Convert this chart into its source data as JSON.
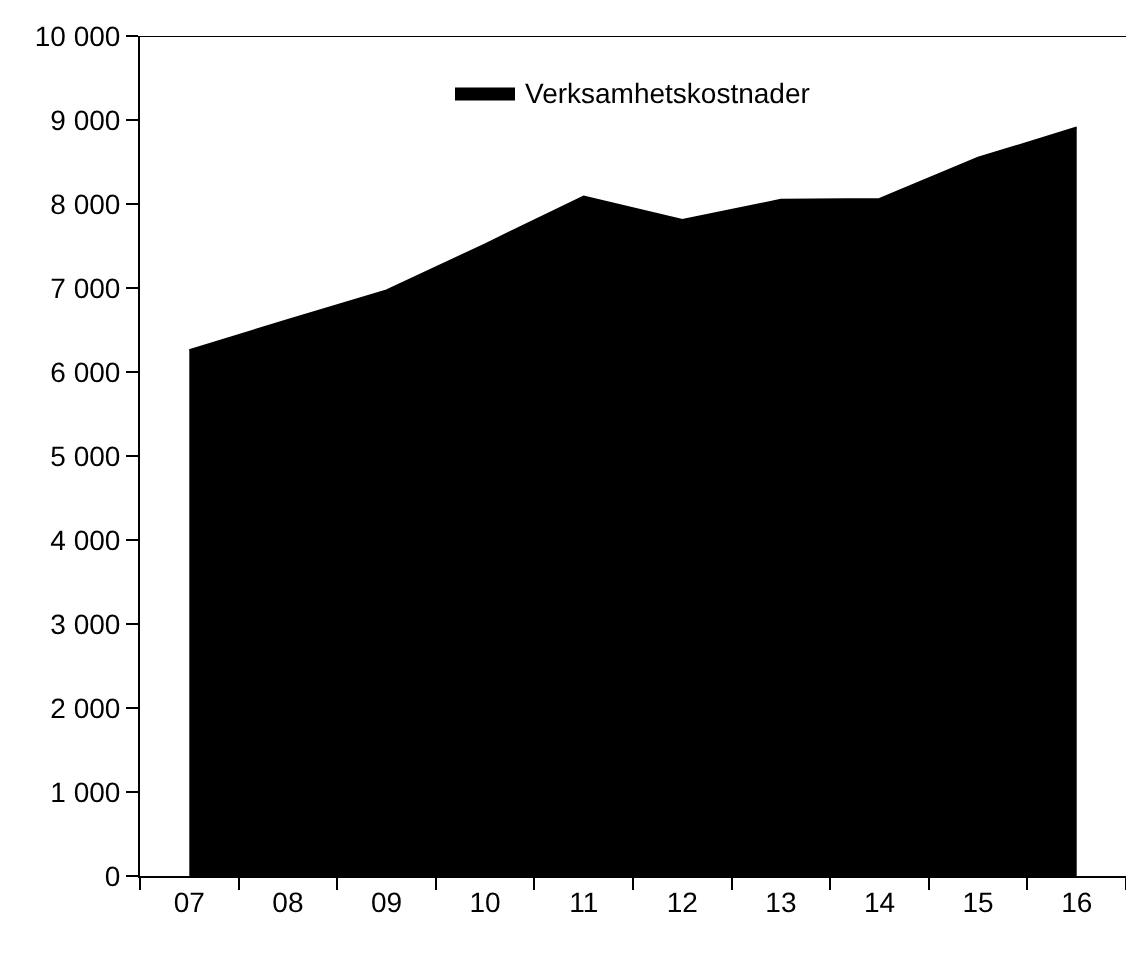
{
  "chart_data": {
    "type": "area",
    "categories": [
      "07",
      "08",
      "09",
      "10",
      "11",
      "12",
      "13",
      "14",
      "15",
      "16"
    ],
    "series": [
      {
        "name": "Verksamhetskostnader",
        "color": "#000000",
        "values": [
          6260,
          6620,
          6970,
          7520,
          8090,
          7810,
          8050,
          8060,
          8550,
          8910
        ]
      }
    ],
    "ylim": [
      0,
      10000
    ],
    "yticks": [
      {
        "value": 0,
        "label": "0"
      },
      {
        "value": 1000,
        "label": "1 000"
      },
      {
        "value": 2000,
        "label": "2 000"
      },
      {
        "value": 3000,
        "label": "3 000"
      },
      {
        "value": 4000,
        "label": "4 000"
      },
      {
        "value": 5000,
        "label": "5 000"
      },
      {
        "value": 6000,
        "label": "6 000"
      },
      {
        "value": 7000,
        "label": "7 000"
      },
      {
        "value": 8000,
        "label": "8 000"
      },
      {
        "value": 9000,
        "label": "9 000"
      },
      {
        "value": 10000,
        "label": "10 000"
      }
    ],
    "legend": "top"
  }
}
